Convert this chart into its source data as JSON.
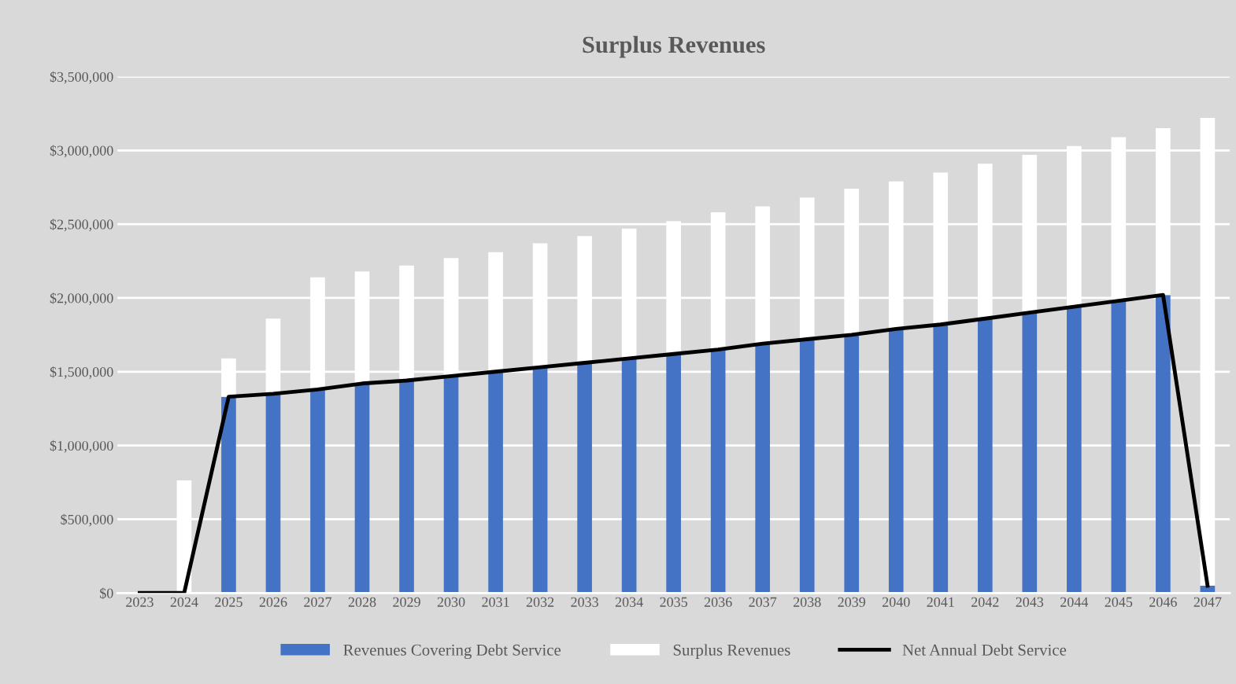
{
  "chart_data": {
    "type": "bar",
    "stacked": true,
    "title": "Surplus Revenues",
    "categories": [
      "2023",
      "2024",
      "2025",
      "2026",
      "2027",
      "2028",
      "2029",
      "2030",
      "2031",
      "2032",
      "2033",
      "2034",
      "2035",
      "2036",
      "2037",
      "2038",
      "2039",
      "2040",
      "2041",
      "2042",
      "2043",
      "2044",
      "2045",
      "2046",
      "2047"
    ],
    "series": [
      {
        "name": "Revenues Covering Debt Service",
        "color": "#4472c4",
        "values": [
          0,
          0,
          1330000,
          1350000,
          1380000,
          1420000,
          1440000,
          1470000,
          1500000,
          1530000,
          1560000,
          1590000,
          1620000,
          1650000,
          1690000,
          1720000,
          1750000,
          1790000,
          1820000,
          1860000,
          1900000,
          1940000,
          1980000,
          2020000,
          50000
        ]
      },
      {
        "name": "Surplus Revenues",
        "color": "#ffffff",
        "values": [
          0,
          763000,
          260000,
          510000,
          760000,
          760000,
          780000,
          800000,
          810000,
          840000,
          860000,
          880000,
          900000,
          930000,
          930000,
          960000,
          990000,
          1000000,
          1030000,
          1050000,
          1070000,
          1090000,
          1110000,
          1130000,
          3170000
        ]
      },
      {
        "name": "Net Annual Debt Service",
        "type": "line",
        "color": "#000000",
        "values": [
          0,
          0,
          1330000,
          1350000,
          1380000,
          1420000,
          1440000,
          1470000,
          1500000,
          1530000,
          1560000,
          1590000,
          1620000,
          1650000,
          1690000,
          1720000,
          1750000,
          1790000,
          1820000,
          1860000,
          1900000,
          1940000,
          1980000,
          2020000,
          50000
        ]
      }
    ],
    "ylim": [
      0,
      3500000
    ],
    "yticks": [
      {
        "value": 0,
        "label": "$0"
      },
      {
        "value": 500000,
        "label": "$500,000"
      },
      {
        "value": 1000000,
        "label": "$1,000,000"
      },
      {
        "value": 1500000,
        "label": "$1,500,000"
      },
      {
        "value": 2000000,
        "label": "$2,000,000"
      },
      {
        "value": 2500000,
        "label": "$2,500,000"
      },
      {
        "value": 3000000,
        "label": "$3,000,000"
      },
      {
        "value": 3500000,
        "label": "$3,500,000"
      }
    ],
    "grid": "y",
    "legend": "bottom",
    "marker": "none",
    "line_style": "solid"
  }
}
